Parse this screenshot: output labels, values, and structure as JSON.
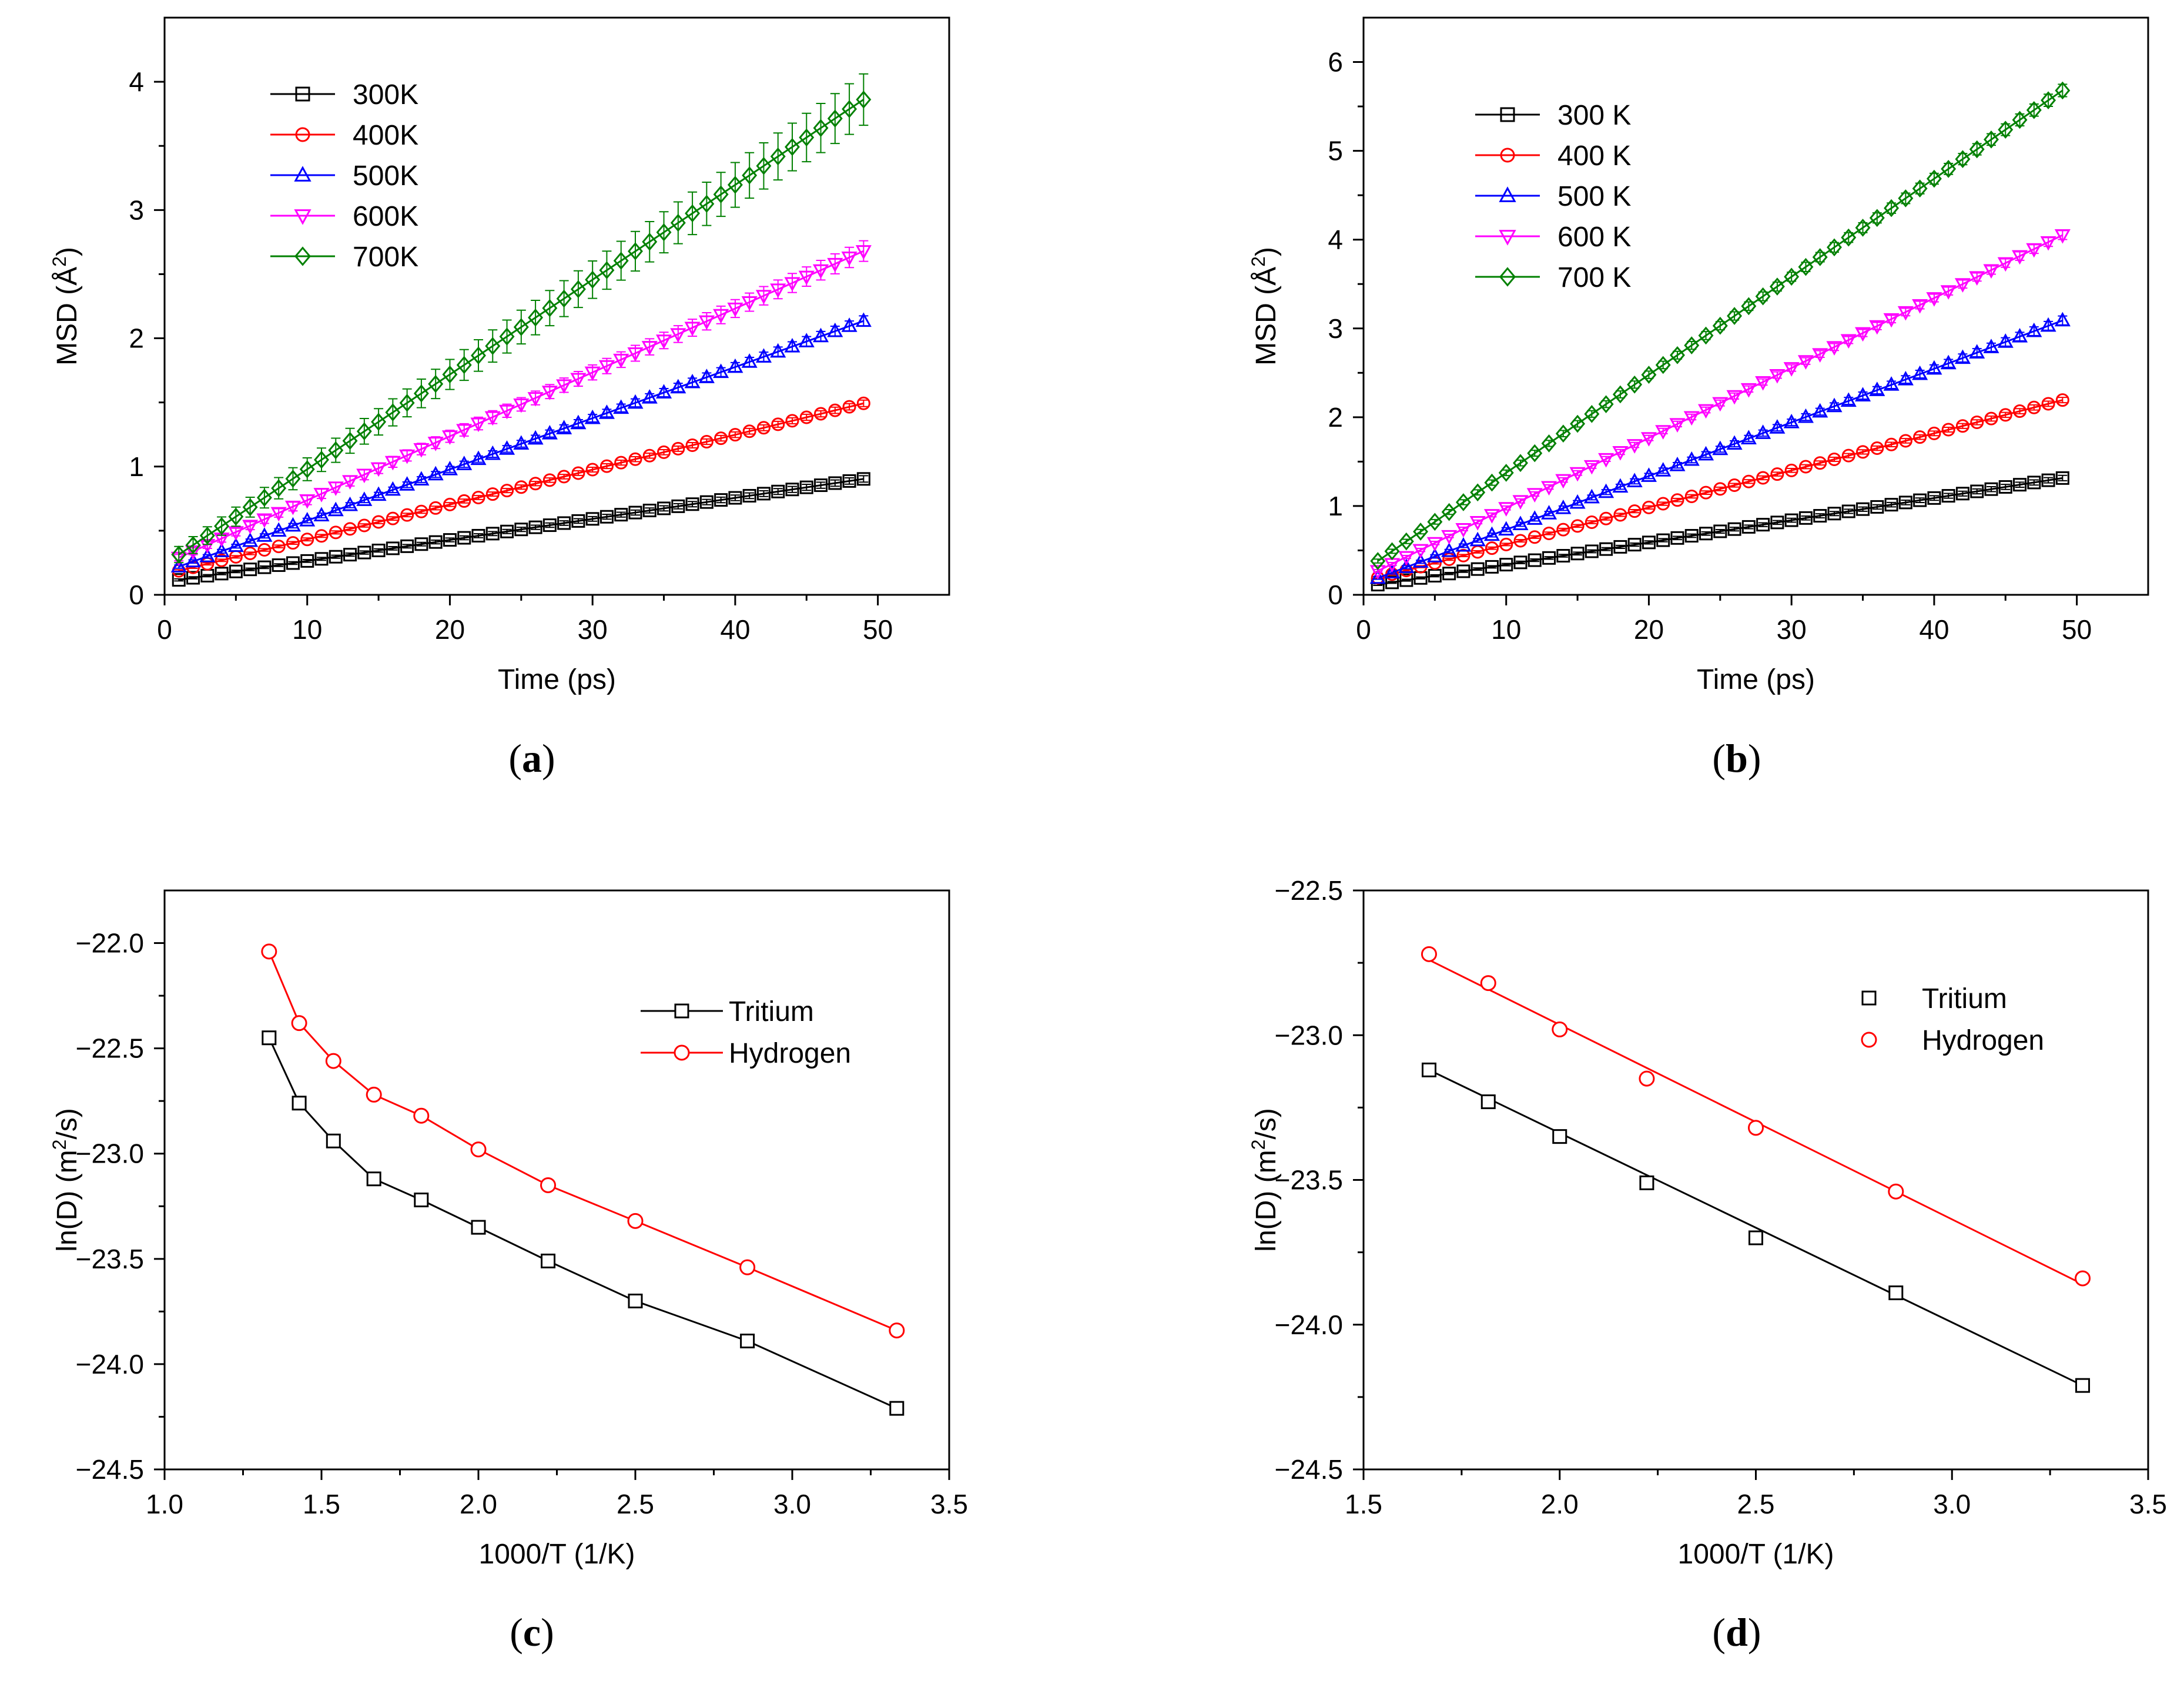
{
  "figure": {
    "charts": [
      {
        "id": "a",
        "panel_label": "a",
        "type": "line",
        "xlabel": "Time (ps)",
        "ylabel_prefix": "MSD (Å",
        "ylabel_sup": "2",
        "ylabel_suffix": ")",
        "xlim": [
          0,
          55
        ],
        "ylim": [
          0,
          4.5
        ],
        "xticks": [
          0,
          10,
          20,
          30,
          40,
          50
        ],
        "yticks": [
          0,
          1,
          2,
          3,
          4
        ],
        "legend": "top-left",
        "series": [
          {
            "name": "300K",
            "color": "#000000",
            "marker": "square",
            "slope": 0.0164,
            "intercept": 0.1,
            "err": 0.025,
            "values_at_ends": [
              0.1,
              0.91
            ]
          },
          {
            "name": "400K",
            "color": "#ff0000",
            "marker": "circle",
            "slope": 0.0272,
            "intercept": 0.16,
            "err": 0.025,
            "values_at_ends": [
              0.16,
              1.49
            ]
          },
          {
            "name": "500K",
            "color": "#0000ff",
            "marker": "triangle-up",
            "slope": 0.0399,
            "intercept": 0.18,
            "err": 0.04,
            "values_at_ends": [
              0.18,
              2.13
            ]
          },
          {
            "name": "600K",
            "color": "#ff00ff",
            "marker": "triangle-down",
            "slope": 0.0498,
            "intercept": 0.24,
            "err": 0.08,
            "values_at_ends": [
              0.24,
              2.68
            ]
          },
          {
            "name": "700K",
            "color": "#008000",
            "marker": "diamond",
            "slope": 0.0739,
            "intercept": 0.24,
            "err": 0.2,
            "values_at_ends": [
              0.24,
              3.86
            ]
          }
        ]
      },
      {
        "id": "b",
        "panel_label": "b",
        "type": "line",
        "xlabel": "Time (ps)",
        "ylabel_prefix": "MSD (Å",
        "ylabel_sup": "2",
        "ylabel_suffix": ")",
        "xlim": [
          0,
          55
        ],
        "ylim": [
          0,
          6.5
        ],
        "xticks": [
          0,
          10,
          20,
          30,
          40,
          50
        ],
        "yticks": [
          0,
          1,
          2,
          3,
          4,
          5,
          6
        ],
        "legend": "top-left",
        "series": [
          {
            "name": "300 K",
            "color": "#000000",
            "marker": "square",
            "slope": 0.025,
            "intercept": 0.09,
            "err": 0.03,
            "values_at_ends": [
              0.09,
              1.31
            ]
          },
          {
            "name": "400 K",
            "color": "#ff0000",
            "marker": "circle",
            "slope": 0.0417,
            "intercept": 0.15,
            "err": 0.03,
            "values_at_ends": [
              0.15,
              2.19
            ]
          },
          {
            "name": "500 K",
            "color": "#0000ff",
            "marker": "triangle-up",
            "slope": 0.0604,
            "intercept": 0.13,
            "err": 0.05,
            "values_at_ends": [
              0.13,
              3.09
            ]
          },
          {
            "name": "600 K",
            "color": "#ff00ff",
            "marker": "triangle-down",
            "slope": 0.0788,
            "intercept": 0.19,
            "err": 0.05,
            "values_at_ends": [
              0.19,
              4.05
            ]
          },
          {
            "name": "700 K",
            "color": "#008000",
            "marker": "diamond",
            "slope": 0.1104,
            "intercept": 0.27,
            "err": 0.07,
            "values_at_ends": [
              0.27,
              5.64
            ]
          }
        ]
      },
      {
        "id": "c",
        "panel_label": "c",
        "type": "line",
        "xlabel": "1000/T (1/K)",
        "ylabel_prefix": "ln(D) (m",
        "ylabel_sup": "2",
        "ylabel_suffix": "/s)",
        "xlim": [
          1.0,
          3.5
        ],
        "ylim": [
          -24.5,
          -21.75
        ],
        "xticks": [
          1.0,
          1.5,
          2.0,
          2.5,
          3.0,
          3.5
        ],
        "yticks": [
          -24.5,
          -24.0,
          -23.5,
          -23.0,
          -22.5,
          -22.0
        ],
        "legend": "top-right",
        "x": [
          1.333,
          1.429,
          1.538,
          1.667,
          1.818,
          2.0,
          2.222,
          2.5,
          2.857,
          3.333
        ],
        "series": [
          {
            "name": "Tritium",
            "color": "#000000",
            "marker": "square",
            "connect": true,
            "values": [
              -22.45,
              -22.76,
              -22.94,
              -23.12,
              -23.22,
              -23.35,
              -23.51,
              -23.7,
              -23.89,
              -24.21
            ]
          },
          {
            "name": "Hydrogen",
            "color": "#ff0000",
            "marker": "circle",
            "connect": true,
            "values": [
              -22.04,
              -22.38,
              -22.56,
              -22.72,
              -22.82,
              -22.98,
              -23.15,
              -23.32,
              -23.54,
              -23.84
            ]
          }
        ]
      },
      {
        "id": "d",
        "panel_label": "d",
        "type": "scatter",
        "xlabel": "1000/T (1/K)",
        "ylabel_prefix": "ln(D) (m",
        "ylabel_sup": "2",
        "ylabel_suffix": "/s)",
        "xlim": [
          1.5,
          3.5
        ],
        "ylim": [
          -24.5,
          -22.5
        ],
        "xticks": [
          1.5,
          2.0,
          2.5,
          3.0,
          3.5
        ],
        "yticks": [
          -24.5,
          -24.0,
          -23.5,
          -23.0,
          -22.5
        ],
        "legend": "top-right",
        "x": [
          1.667,
          1.818,
          2.0,
          2.222,
          2.5,
          2.857,
          3.333
        ],
        "series": [
          {
            "name": "Tritium",
            "color": "#000000",
            "marker": "square",
            "fit": [
              1.667,
              -23.12,
              3.333,
              -24.21
            ],
            "values": [
              -23.12,
              -23.23,
              -23.35,
              -23.51,
              -23.7,
              -23.89,
              -24.21
            ]
          },
          {
            "name": "Hydrogen",
            "color": "#ff0000",
            "marker": "circle",
            "fit": [
              1.667,
              -22.74,
              3.333,
              -23.86
            ],
            "values": [
              -22.72,
              -22.82,
              -22.98,
              -23.15,
              -23.32,
              -23.54,
              -23.84
            ]
          }
        ]
      }
    ]
  }
}
